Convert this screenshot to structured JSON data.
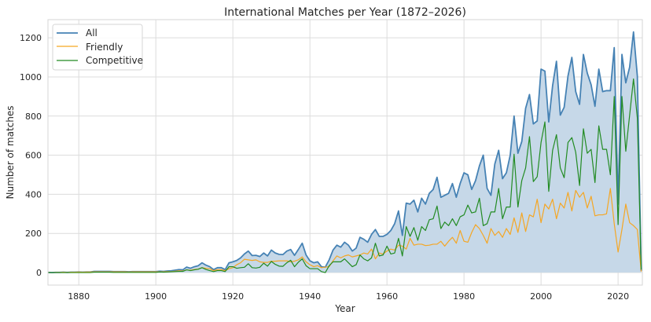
{
  "chart_data": {
    "type": "line",
    "title": "International Matches per Year (1872–2026)",
    "xlabel": "Year",
    "ylabel": "Number of matches",
    "xlim": [
      1872,
      2026.3
    ],
    "ylim": [
      -64,
      1293
    ],
    "xticks": [
      1880,
      1900,
      1920,
      1940,
      1960,
      1980,
      2000,
      2020
    ],
    "yticks": [
      0,
      200,
      400,
      600,
      800,
      1000,
      1200
    ],
    "grid": true,
    "legend": "top-left",
    "x_first_year": 1872,
    "series": [
      {
        "name": "All",
        "color": "#4682b4",
        "fill": true,
        "fill_color": "#c6d8e8",
        "values": [
          1,
          0,
          1,
          1,
          2,
          1,
          2,
          2,
          3,
          2,
          3,
          3,
          6,
          6,
          6,
          6,
          6,
          5,
          5,
          5,
          5,
          4,
          5,
          5,
          5,
          5,
          5,
          5,
          5,
          7,
          6,
          8,
          9,
          12,
          15,
          14,
          28,
          22,
          30,
          35,
          50,
          38,
          30,
          15,
          25,
          25,
          15,
          50,
          55,
          62,
          75,
          95,
          110,
          87,
          88,
          82,
          100,
          85,
          115,
          100,
          93,
          92,
          110,
          118,
          88,
          118,
          150,
          90,
          60,
          50,
          55,
          30,
          28,
          65,
          115,
          140,
          130,
          155,
          140,
          110,
          125,
          180,
          170,
          155,
          195,
          220,
          185,
          185,
          195,
          215,
          250,
          315,
          190,
          355,
          350,
          370,
          310,
          380,
          350,
          405,
          425,
          487,
          385,
          395,
          405,
          455,
          385,
          455,
          510,
          500,
          425,
          470,
          545,
          600,
          430,
          395,
          555,
          625,
          480,
          510,
          600,
          800,
          610,
          670,
          840,
          910,
          760,
          775,
          1040,
          1030,
          770,
          955,
          1080,
          805,
          845,
          1005,
          1100,
          925,
          860,
          1115,
          1020,
          960,
          850,
          1040,
          925,
          930,
          930,
          1150,
          350,
          1115,
          970,
          1050,
          1230,
          1005,
          8
        ]
      },
      {
        "name": "Friendly",
        "color": "#f5a623",
        "fill": false,
        "values": [
          1,
          0,
          1,
          1,
          2,
          1,
          2,
          2,
          3,
          2,
          3,
          3,
          4,
          4,
          4,
          4,
          4,
          4,
          4,
          4,
          4,
          3,
          4,
          4,
          4,
          4,
          4,
          4,
          4,
          4,
          4,
          5,
          5,
          7,
          9,
          8,
          14,
          12,
          16,
          18,
          25,
          22,
          20,
          10,
          15,
          15,
          10,
          20,
          25,
          40,
          50,
          68,
          65,
          62,
          65,
          55,
          52,
          52,
          58,
          58,
          60,
          60,
          60,
          55,
          58,
          65,
          80,
          55,
          40,
          30,
          35,
          25,
          28,
          30,
          60,
          85,
          75,
          85,
          90,
          80,
          85,
          90,
          100,
          95,
          120,
          70,
          100,
          95,
          110,
          120,
          115,
          140,
          135,
          120,
          175,
          140,
          145,
          145,
          138,
          140,
          145,
          145,
          160,
          135,
          160,
          180,
          150,
          215,
          160,
          155,
          205,
          245,
          225,
          190,
          150,
          225,
          190,
          210,
          180,
          225,
          195,
          280,
          205,
          305,
          210,
          295,
          285,
          375,
          255,
          350,
          325,
          375,
          275,
          355,
          330,
          410,
          315,
          420,
          385,
          410,
          330,
          390,
          290,
          295,
          295,
          300,
          430,
          250,
          105,
          220,
          350,
          255,
          240,
          220,
          5
        ]
      },
      {
        "name": "Competitive",
        "color": "#228b22",
        "fill": false,
        "values": [
          0,
          0,
          0,
          0,
          0,
          0,
          0,
          0,
          0,
          0,
          0,
          0,
          2,
          2,
          2,
          2,
          2,
          1,
          1,
          1,
          1,
          1,
          1,
          1,
          1,
          1,
          1,
          1,
          1,
          3,
          2,
          3,
          4,
          5,
          6,
          6,
          14,
          10,
          14,
          17,
          25,
          16,
          10,
          5,
          10,
          10,
          5,
          30,
          30,
          22,
          25,
          27,
          45,
          25,
          23,
          27,
          48,
          33,
          57,
          42,
          33,
          32,
          50,
          63,
          30,
          53,
          70,
          35,
          20,
          20,
          20,
          5,
          0,
          35,
          55,
          55,
          55,
          70,
          50,
          30,
          40,
          90,
          70,
          60,
          75,
          150,
          85,
          90,
          135,
          95,
          100,
          175,
          85,
          235,
          185,
          230,
          165,
          235,
          215,
          270,
          275,
          340,
          225,
          258,
          240,
          275,
          240,
          285,
          295,
          345,
          305,
          310,
          380,
          240,
          250,
          310,
          310,
          430,
          275,
          335,
          335,
          605,
          335,
          470,
          535,
          695,
          465,
          490,
          665,
          770,
          415,
          625,
          705,
          535,
          485,
          665,
          690,
          615,
          445,
          735,
          610,
          630,
          460,
          750,
          630,
          630,
          500,
          900,
          245,
          900,
          620,
          805,
          990,
          790,
          15
        ]
      }
    ]
  }
}
